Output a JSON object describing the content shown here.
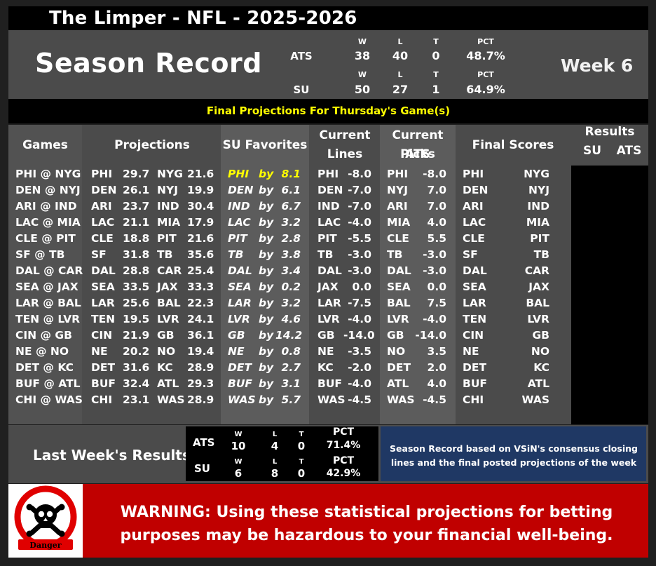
{
  "header": {
    "title": "The Limper - NFL - 2025-2026"
  },
  "season": {
    "label": "Season Record",
    "week": "Week 6",
    "col_headers": {
      "w": "W",
      "l": "L",
      "t": "T",
      "pct": "PCT"
    },
    "ats": {
      "label": "ATS",
      "w": "38",
      "l": "40",
      "t": "0",
      "pct": "48.7%"
    },
    "su": {
      "label": "SU",
      "w": "50",
      "l": "27",
      "t": "1",
      "pct": "64.9%"
    }
  },
  "banner": "Final Projections For Thursday's Game(s)",
  "table": {
    "headers": {
      "games": "Games",
      "projections": "Projections",
      "su_favorites": "SU Favorites",
      "current_lines_1": "Current",
      "current_lines_2": "Lines",
      "ats_picks_1": "Current ATS",
      "ats_picks_2": "Picks",
      "final_scores": "Final Scores",
      "results": "Results",
      "results_su": "SU",
      "results_ats": "ATS"
    },
    "rows": [
      {
        "game": "PHI @ NYG",
        "a": "PHI",
        "as": "29.7",
        "h": "NYG",
        "hs": "21.6",
        "fav": "PHI",
        "by": "by",
        "margin": "8.1",
        "lt": "PHI",
        "lv": "-8.0",
        "pt": "PHI",
        "pv": "-8.0",
        "fa": "PHI",
        "fh": "NYG",
        "highlight": true
      },
      {
        "game": "DEN @ NYJ",
        "a": "DEN",
        "as": "26.1",
        "h": "NYJ",
        "hs": "19.9",
        "fav": "DEN",
        "by": "by",
        "margin": "6.1",
        "lt": "DEN",
        "lv": "-7.0",
        "pt": "NYJ",
        "pv": "7.0",
        "fa": "DEN",
        "fh": "NYJ"
      },
      {
        "game": "ARI @ IND",
        "a": "ARI",
        "as": "23.7",
        "h": "IND",
        "hs": "30.4",
        "fav": "IND",
        "by": "by",
        "margin": "6.7",
        "lt": "IND",
        "lv": "-7.0",
        "pt": "ARI",
        "pv": "7.0",
        "fa": "ARI",
        "fh": "IND"
      },
      {
        "game": "LAC @ MIA",
        "a": "LAC",
        "as": "21.1",
        "h": "MIA",
        "hs": "17.9",
        "fav": "LAC",
        "by": "by",
        "margin": "3.2",
        "lt": "LAC",
        "lv": "-4.0",
        "pt": "MIA",
        "pv": "4.0",
        "fa": "LAC",
        "fh": "MIA"
      },
      {
        "game": "CLE @ PIT",
        "a": "CLE",
        "as": "18.8",
        "h": "PIT",
        "hs": "21.6",
        "fav": "PIT",
        "by": "by",
        "margin": "2.8",
        "lt": "PIT",
        "lv": "-5.5",
        "pt": "CLE",
        "pv": "5.5",
        "fa": "CLE",
        "fh": "PIT"
      },
      {
        "game": "SF @ TB",
        "a": "SF",
        "as": "31.8",
        "h": "TB",
        "hs": "35.6",
        "fav": "TB",
        "by": "by",
        "margin": "3.8",
        "lt": "TB",
        "lv": "-3.0",
        "pt": "TB",
        "pv": "-3.0",
        "fa": "SF",
        "fh": "TB"
      },
      {
        "game": "DAL @ CAR",
        "a": "DAL",
        "as": "28.8",
        "h": "CAR",
        "hs": "25.4",
        "fav": "DAL",
        "by": "by",
        "margin": "3.4",
        "lt": "DAL",
        "lv": "-3.0",
        "pt": "DAL",
        "pv": "-3.0",
        "fa": "DAL",
        "fh": "CAR"
      },
      {
        "game": "SEA @ JAX",
        "a": "SEA",
        "as": "33.5",
        "h": "JAX",
        "hs": "33.3",
        "fav": "SEA",
        "by": "by",
        "margin": "0.2",
        "lt": "JAX",
        "lv": "0.0",
        "pt": "SEA",
        "pv": "0.0",
        "fa": "SEA",
        "fh": "JAX"
      },
      {
        "game": "LAR @ BAL",
        "a": "LAR",
        "as": "25.6",
        "h": "BAL",
        "hs": "22.3",
        "fav": "LAR",
        "by": "by",
        "margin": "3.2",
        "lt": "LAR",
        "lv": "-7.5",
        "pt": "BAL",
        "pv": "7.5",
        "fa": "LAR",
        "fh": "BAL"
      },
      {
        "game": "TEN @ LVR",
        "a": "TEN",
        "as": "19.5",
        "h": "LVR",
        "hs": "24.1",
        "fav": "LVR",
        "by": "by",
        "margin": "4.6",
        "lt": "LVR",
        "lv": "-4.0",
        "pt": "LVR",
        "pv": "-4.0",
        "fa": "TEN",
        "fh": "LVR"
      },
      {
        "game": "CIN @ GB",
        "a": "CIN",
        "as": "21.9",
        "h": "GB",
        "hs": "36.1",
        "fav": "GB",
        "by": "by",
        "margin": "14.2",
        "lt": "GB",
        "lv": "-14.0",
        "pt": "GB",
        "pv": "-14.0",
        "fa": "CIN",
        "fh": "GB"
      },
      {
        "game": "NE @ NO",
        "a": "NE",
        "as": "20.2",
        "h": "NO",
        "hs": "19.4",
        "fav": "NE",
        "by": "by",
        "margin": "0.8",
        "lt": "NE",
        "lv": "-3.5",
        "pt": "NO",
        "pv": "3.5",
        "fa": "NE",
        "fh": "NO"
      },
      {
        "game": "DET @ KC",
        "a": "DET",
        "as": "31.6",
        "h": "KC",
        "hs": "28.9",
        "fav": "DET",
        "by": "by",
        "margin": "2.7",
        "lt": "KC",
        "lv": "-2.0",
        "pt": "DET",
        "pv": "2.0",
        "fa": "DET",
        "fh": "KC"
      },
      {
        "game": "BUF @ ATL",
        "a": "BUF",
        "as": "32.4",
        "h": "ATL",
        "hs": "29.3",
        "fav": "BUF",
        "by": "by",
        "margin": "3.1",
        "lt": "BUF",
        "lv": "-4.0",
        "pt": "ATL",
        "pv": "4.0",
        "fa": "BUF",
        "fh": "ATL"
      },
      {
        "game": "CHI @ WAS",
        "a": "CHI",
        "as": "23.1",
        "h": "WAS",
        "hs": "28.9",
        "fav": "WAS",
        "by": "by",
        "margin": "5.7",
        "lt": "WAS",
        "lv": "-4.5",
        "pt": "WAS",
        "pv": "-4.5",
        "fa": "CHI",
        "fh": "WAS"
      }
    ]
  },
  "last_week": {
    "label": "Last Week's Results",
    "col_headers": {
      "w": "W",
      "l": "L",
      "t": "T",
      "pct": "PCT"
    },
    "ats": {
      "label": "ATS",
      "w": "10",
      "l": "4",
      "t": "0",
      "pct": "71.4%"
    },
    "su": {
      "label": "SU",
      "w": "6",
      "l": "8",
      "t": "0",
      "pct": "42.9%"
    },
    "note": "Season Record based on VSiN's consensus closing lines and the final posted projections of the week"
  },
  "warning": {
    "text": "WARNING: Using these statistical projections for betting purposes may be hazardous to your financial well-being.",
    "danger_label": "Danger"
  },
  "colors": {
    "highlight": "#ffff00",
    "warning_bg": "#c00000",
    "note_bg": "#1f3864"
  }
}
